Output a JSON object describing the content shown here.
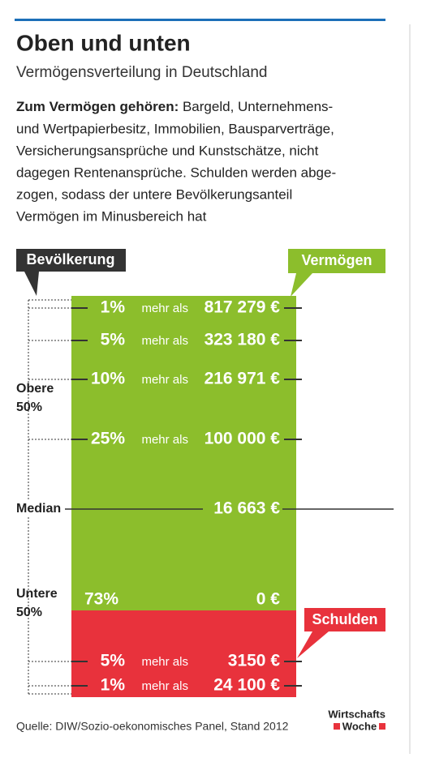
{
  "header": {
    "title": "Oben und unten",
    "subtitle": "Vermögensverteilung in Deutschland"
  },
  "intro": {
    "lead": "Zum Vermögen gehören:",
    "lines": [
      " Bargeld, Unternehmens-",
      "und Wertpapierbesitz, Immobilien, Bausparverträge,",
      "Versicherungsansprüche und Kunstschätze, nicht",
      "dagegen Rentenansprüche. Schulden werden abge-",
      "zogen, sodass der untere Bevölkerungsanteil",
      "Vermögen im Minusbereich hat"
    ]
  },
  "labels": {
    "population": "Bevölkerung",
    "wealth": "Vermögen",
    "debts": "Schulden"
  },
  "groups": {
    "upper": [
      "Obere",
      "50%"
    ],
    "median": "Median",
    "lower": [
      "Untere",
      "50%"
    ]
  },
  "wealth_rows": [
    {
      "share": "1%",
      "prefix": "mehr als",
      "amount": "817 279 €"
    },
    {
      "share": "5%",
      "prefix": "mehr als",
      "amount": "323 180 €"
    },
    {
      "share": "10%",
      "prefix": "mehr als",
      "amount": "216 971 €"
    },
    {
      "share": "25%",
      "prefix": "mehr als",
      "amount": "100 000 €"
    }
  ],
  "median_amount": "16 663 €",
  "zero_row": {
    "share": "73%",
    "amount": "0 €"
  },
  "debt_rows": [
    {
      "share": "5%",
      "prefix": "mehr als",
      "amount": "3150 €"
    },
    {
      "share": "1%",
      "prefix": "mehr als",
      "amount": "24 100 €"
    }
  ],
  "footer": {
    "source": "Quelle: DIW/Sozio-oekonomisches Panel, Stand 2012",
    "logo": [
      "Wirtschafts",
      "Woche"
    ]
  }
}
